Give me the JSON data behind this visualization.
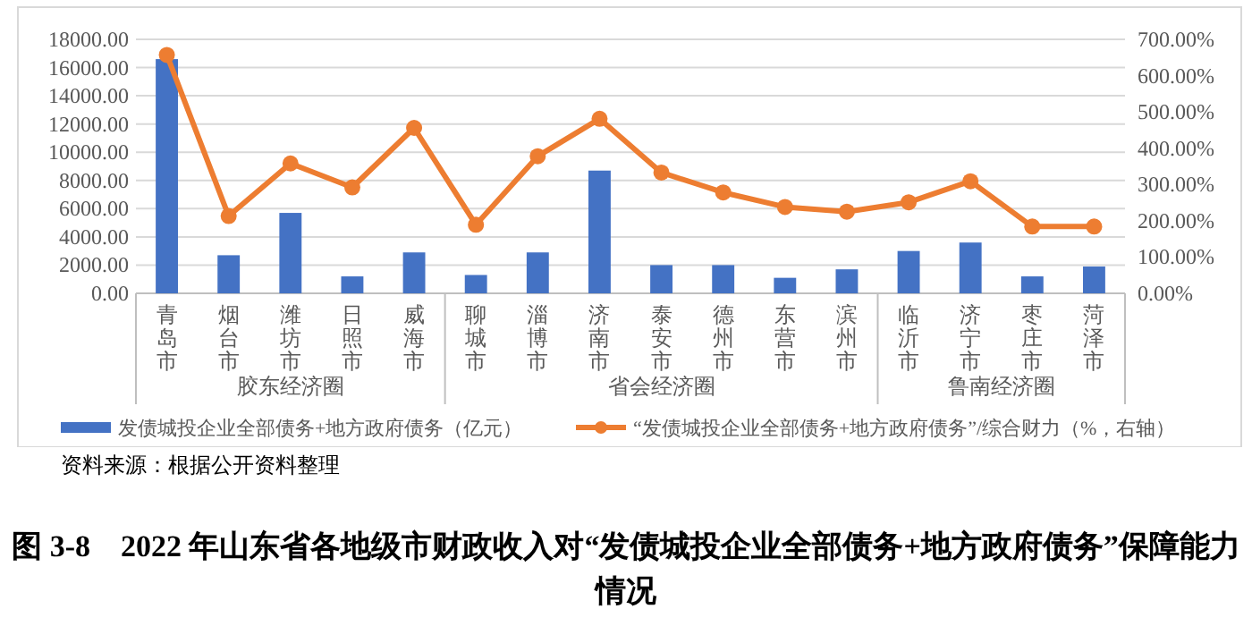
{
  "chart_data": {
    "type": "bar",
    "title": "图 3-8　2022 年山东省各地级市财政收入对“发债城投企业全部债务+地方政府债务”保障能力情况",
    "categories": [
      "青岛市",
      "烟台市",
      "潍坊市",
      "日照市",
      "威海市",
      "聊城市",
      "淄博市",
      "济南市",
      "泰安市",
      "德州市",
      "东营市",
      "滨州市",
      "临沂市",
      "济宁市",
      "枣庄市",
      "菏泽市"
    ],
    "series": [
      {
        "name": "发债城投企业全部债务+地方政府债务（亿元）",
        "color": "#4472c4",
        "values": [
          16600,
          2700,
          5700,
          1200,
          2900,
          1300,
          2900,
          8700,
          2000,
          2000,
          1100,
          1700,
          3000,
          3600,
          1200,
          1900
        ]
      },
      {
        "name": "“发债城投企业全部债务+地方政府债务”/综合财力（%，右轴）",
        "type": "line",
        "axis": "y2",
        "color": "#ed7d31",
        "marker": "circle",
        "values": [
          657,
          213,
          358,
          292,
          456,
          189,
          378,
          481,
          333,
          278,
          238,
          225,
          251,
          309,
          184,
          184
        ]
      }
    ],
    "ylim": [
      0,
      18000
    ],
    "yticks": [
      {
        "value": 0,
        "label": "0.00"
      },
      {
        "value": 2000,
        "label": "2000.00"
      },
      {
        "value": 4000,
        "label": "4000.00"
      },
      {
        "value": 6000,
        "label": "6000.00"
      },
      {
        "value": 8000,
        "label": "8000.00"
      },
      {
        "value": 10000,
        "label": "10000.00"
      },
      {
        "value": 12000,
        "label": "12000.00"
      },
      {
        "value": 14000,
        "label": "14000.00"
      },
      {
        "value": 16000,
        "label": "16000.00"
      },
      {
        "value": 18000,
        "label": "18000.00"
      }
    ],
    "y2lim": [
      0,
      700
    ],
    "y2ticks": [
      {
        "value": 0,
        "label": "0.00%"
      },
      {
        "value": 100,
        "label": "100.00%"
      },
      {
        "value": 200,
        "label": "200.00%"
      },
      {
        "value": 300,
        "label": "300.00%"
      },
      {
        "value": 400,
        "label": "400.00%"
      },
      {
        "value": 500,
        "label": "500.00%"
      },
      {
        "value": 600,
        "label": "600.00%"
      },
      {
        "value": 700,
        "label": "700.00%"
      }
    ],
    "grid": "y",
    "legend": "bottom",
    "annotations": [
      "胶东经济圈",
      "省会经济圈",
      "鲁南经济圈",
      "资料来源：根据公开资料整理"
    ]
  }
}
